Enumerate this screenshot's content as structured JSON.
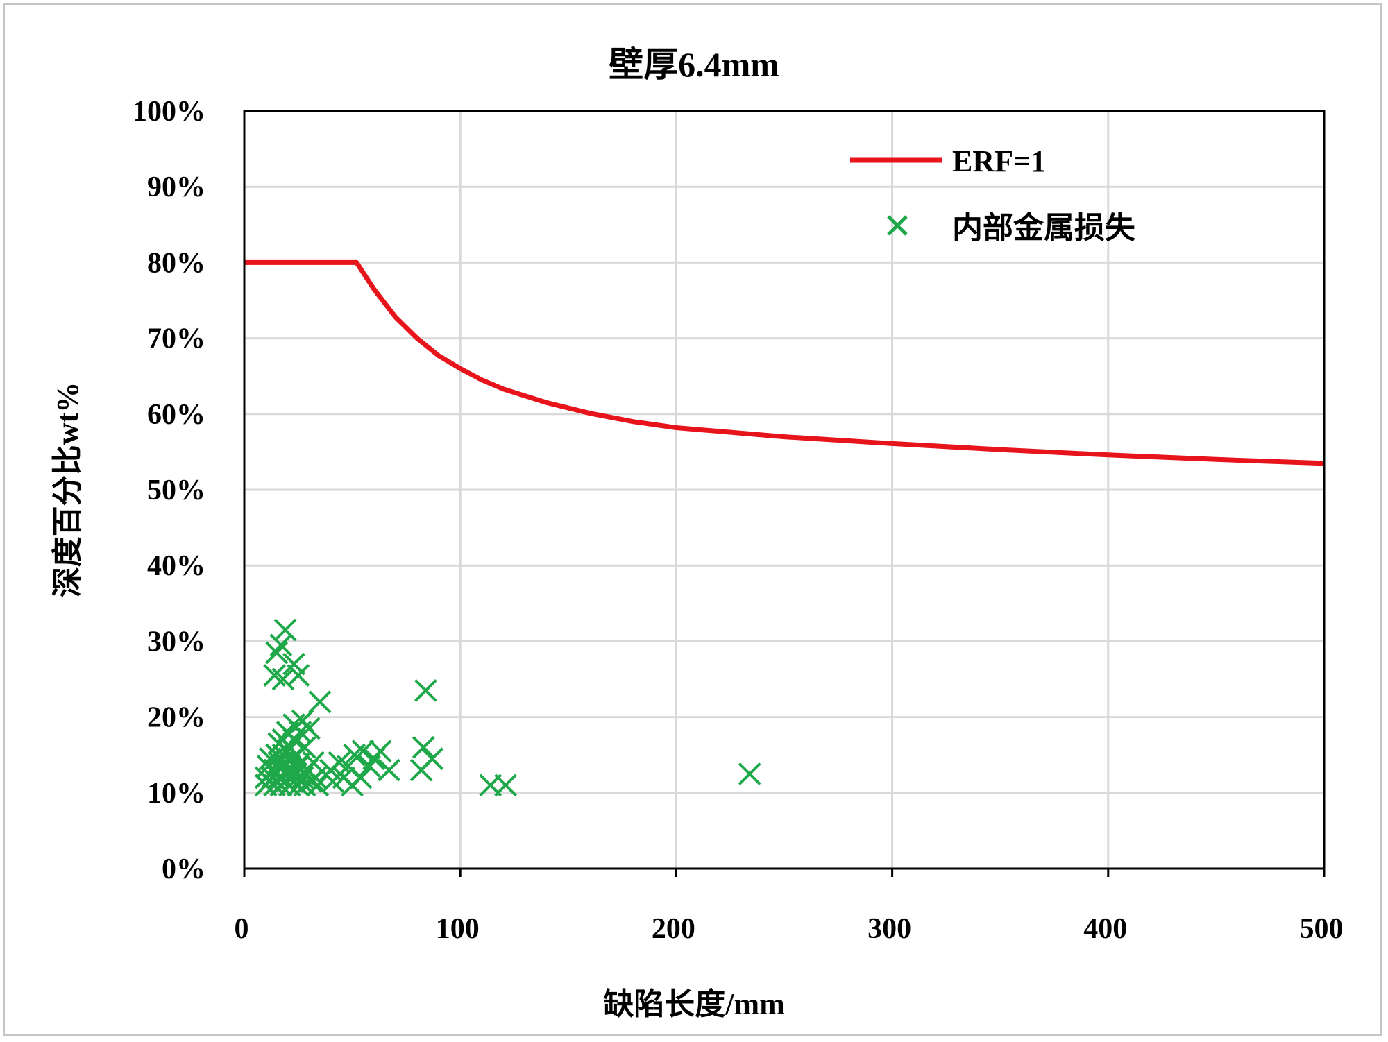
{
  "chart_data": {
    "type": "scatter",
    "title": "壁厚6.4mm",
    "xlabel": "缺陷长度/mm",
    "ylabel": "深度百分比wt%",
    "xlim": [
      0,
      500
    ],
    "ylim": [
      0,
      100
    ],
    "x_ticks": [
      "0",
      "100",
      "200",
      "300",
      "400",
      "500"
    ],
    "y_ticks": [
      "0%",
      "10%",
      "20%",
      "30%",
      "40%",
      "50%",
      "60%",
      "70%",
      "80%",
      "90%",
      "100%"
    ],
    "grid": true,
    "legend_position": "top-right",
    "series": [
      {
        "name": "ERF=1",
        "kind": "line",
        "color": "#e8141c",
        "x": [
          0,
          52,
          60,
          70,
          80,
          90,
          100,
          110,
          120,
          140,
          160,
          180,
          200,
          250,
          300,
          350,
          400,
          450,
          500
        ],
        "y": [
          80,
          80,
          76.5,
          72.8,
          70.0,
          67.7,
          66.0,
          64.5,
          63.3,
          61.5,
          60.1,
          59.0,
          58.2,
          57.0,
          56.1,
          55.3,
          54.6,
          54.0,
          53.5
        ]
      },
      {
        "name": "内部金属损失",
        "kind": "scatter",
        "marker": "x",
        "color": "#1fa84a",
        "points": [
          [
            19,
            31.5
          ],
          [
            17,
            29.5
          ],
          [
            15,
            28.5
          ],
          [
            23,
            27
          ],
          [
            25,
            25.5
          ],
          [
            14,
            25.5
          ],
          [
            18,
            25
          ],
          [
            35,
            22
          ],
          [
            84,
            23.5
          ],
          [
            10,
            11
          ],
          [
            10,
            12
          ],
          [
            11,
            13.5
          ],
          [
            12,
            14.5
          ],
          [
            13,
            12
          ],
          [
            14,
            11
          ],
          [
            14,
            13
          ],
          [
            15,
            15
          ],
          [
            16,
            12
          ],
          [
            16,
            14
          ],
          [
            16,
            16.5
          ],
          [
            17,
            11
          ],
          [
            17,
            13.5
          ],
          [
            18,
            15
          ],
          [
            18,
            17
          ],
          [
            19,
            11.5
          ],
          [
            19,
            12.5
          ],
          [
            19,
            14
          ],
          [
            20,
            13
          ],
          [
            20,
            15.5
          ],
          [
            20,
            18
          ],
          [
            21,
            11
          ],
          [
            21,
            12
          ],
          [
            21,
            16
          ],
          [
            22,
            14.5
          ],
          [
            22,
            13
          ],
          [
            23,
            11.5
          ],
          [
            23,
            17
          ],
          [
            23,
            19
          ],
          [
            24,
            12.5
          ],
          [
            24,
            15
          ],
          [
            25,
            11
          ],
          [
            25,
            13.5
          ],
          [
            26,
            18
          ],
          [
            26,
            14
          ],
          [
            27,
            12
          ],
          [
            27,
            19.5
          ],
          [
            28,
            11
          ],
          [
            28,
            16
          ],
          [
            29,
            13
          ],
          [
            30,
            18.5
          ],
          [
            31,
            11.5
          ],
          [
            32,
            14
          ],
          [
            33,
            12
          ],
          [
            34,
            11
          ],
          [
            40,
            13
          ],
          [
            41,
            11.5
          ],
          [
            44,
            14
          ],
          [
            46,
            12
          ],
          [
            48,
            13.5
          ],
          [
            50,
            11
          ],
          [
            51,
            15
          ],
          [
            54,
            12
          ],
          [
            55,
            15.5
          ],
          [
            58,
            13.5
          ],
          [
            60,
            14.5
          ],
          [
            63,
            15.5
          ],
          [
            67,
            13
          ],
          [
            82,
            13
          ],
          [
            83,
            16
          ],
          [
            87,
            14.5
          ],
          [
            114,
            11
          ],
          [
            121,
            11
          ],
          [
            234,
            12.5
          ]
        ]
      }
    ]
  }
}
